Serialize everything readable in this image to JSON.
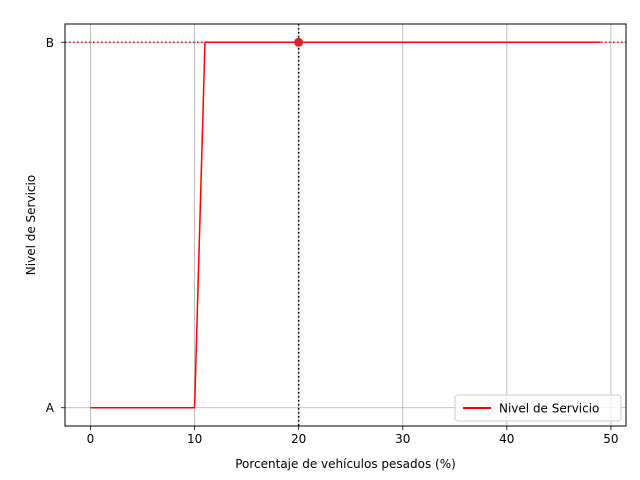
{
  "chart_data": {
    "type": "line",
    "title": "",
    "xlabel": "Porcentaje de vehículos pesados (%)",
    "ylabel": "Nivel de Servicio",
    "xlim": [
      -2.45,
      51.45
    ],
    "ylim": [
      -0.05,
      1.05
    ],
    "x_ticks": [
      0,
      10,
      20,
      30,
      40,
      50
    ],
    "x_tick_labels": [
      "0",
      "10",
      "20",
      "30",
      "40",
      "50"
    ],
    "y_ticks": [
      0,
      1
    ],
    "y_tick_labels": [
      "A",
      "B"
    ],
    "grid": true,
    "legend": {
      "location": "lower-right",
      "entries": [
        "Nivel de Servicio"
      ]
    },
    "series": [
      {
        "name": "Nivel de Servicio",
        "color": "#ff0000",
        "x": [
          0,
          10,
          11,
          49
        ],
        "y": [
          0,
          0,
          1,
          1
        ]
      }
    ],
    "marker": {
      "x": 20,
      "y": 1,
      "color": "#d62728"
    },
    "reference_lines": {
      "vertical_x": 20,
      "vertical_color": "#000000",
      "horizontal_y": 1,
      "horizontal_color": "#ff0000"
    }
  }
}
